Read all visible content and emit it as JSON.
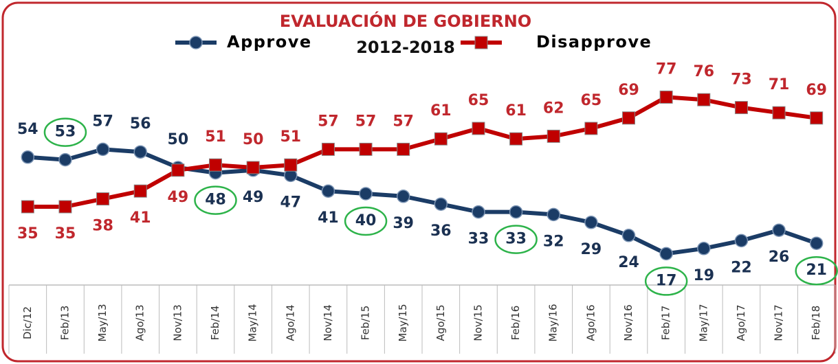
{
  "chart_data": {
    "type": "line",
    "title": "EVALUACIÓN DE GOBIERNO",
    "subtitle": "2012-2018",
    "categories": [
      "Dic/12",
      "Feb/13",
      "May/13",
      "Ago/13",
      "Nov/13",
      "Feb/14",
      "May/14",
      "Ago/14",
      "Nov/14",
      "Feb/15",
      "May/15",
      "Ago/15",
      "Nov/15",
      "Feb/16",
      "May/16",
      "Ago/16",
      "Nov/16",
      "Feb/17",
      "May/17",
      "Ago/17",
      "Nov/17",
      "Feb/18"
    ],
    "series": [
      {
        "name": "Approve",
        "color": "#1b3c66",
        "marker": "circle",
        "values": [
          54,
          53,
          57,
          56,
          50,
          48,
          49,
          47,
          41,
          40,
          39,
          36,
          33,
          33,
          32,
          29,
          24,
          17,
          19,
          22,
          26,
          21
        ]
      },
      {
        "name": "Disapprove",
        "color": "#c00000",
        "marker": "square",
        "values": [
          35,
          35,
          38,
          41,
          49,
          51,
          50,
          51,
          57,
          57,
          57,
          61,
          65,
          61,
          62,
          65,
          69,
          77,
          76,
          73,
          71,
          69
        ]
      }
    ],
    "circled": [
      1,
      5,
      9,
      13,
      17,
      21
    ],
    "ylim": [
      5,
      100
    ]
  }
}
